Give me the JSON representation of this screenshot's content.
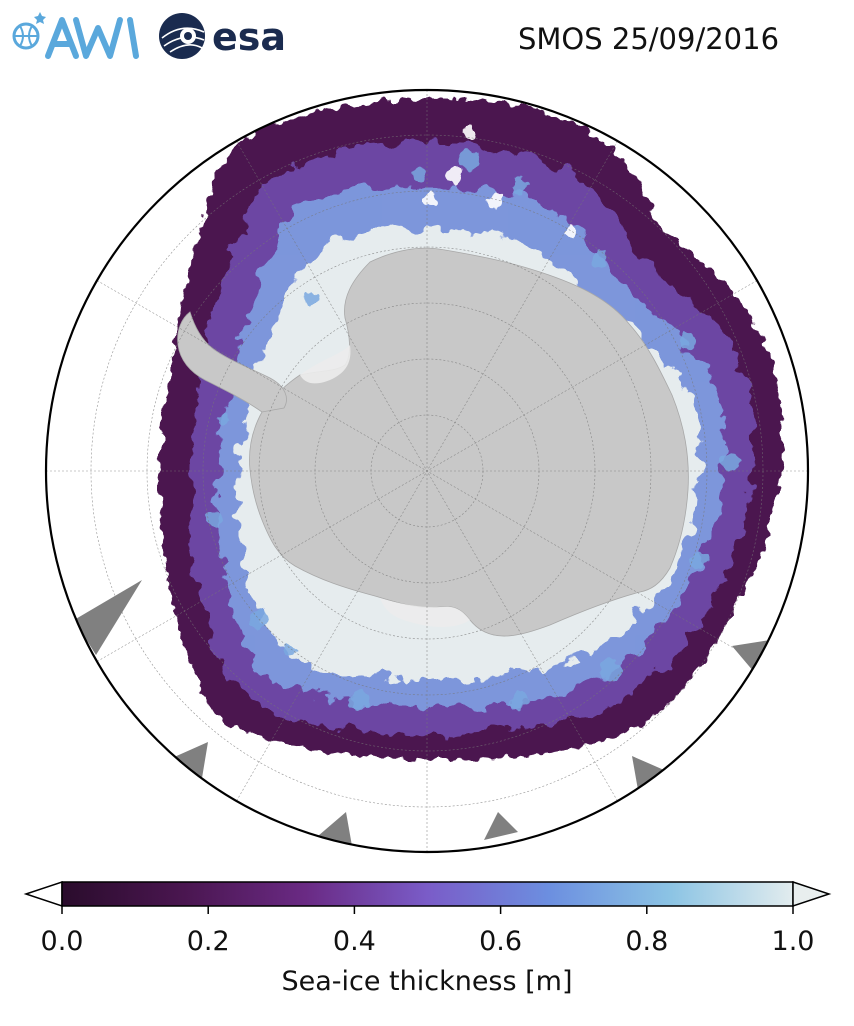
{
  "header": {
    "title": "SMOS 25/09/2016",
    "logos": [
      {
        "name": "awi-logo",
        "text": "AWI"
      },
      {
        "name": "esa-logo",
        "text": "esa"
      }
    ]
  },
  "map": {
    "projection": "south-polar-stereographic",
    "graticule": true,
    "land_color": "#c8c8c8",
    "ocean_color": "#ffffff",
    "no_data_color": "#808080"
  },
  "colorbar": {
    "label": "Sea-ice thickness [m]",
    "ticks": [
      "0.0",
      "0.2",
      "0.4",
      "0.6",
      "0.8",
      "1.0"
    ],
    "min": 0.0,
    "max": 1.0,
    "extend": "both",
    "colormap": [
      "#2a0c2c",
      "#4a1650",
      "#6a2a84",
      "#7a5cc8",
      "#6c8fe0",
      "#8cc4e4",
      "#e2ecee"
    ],
    "under_color": "#ffffff",
    "over_color": "#e8eeee"
  }
}
